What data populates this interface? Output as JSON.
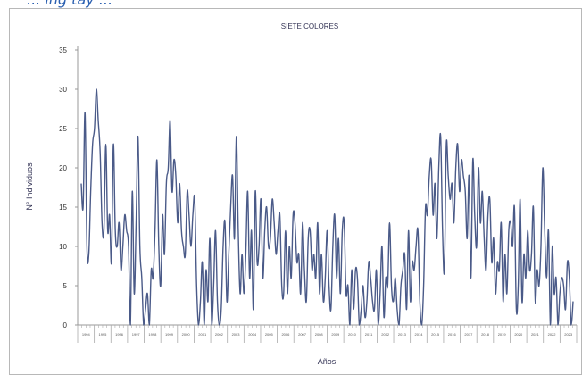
{
  "header_fragment": "... ing tay ...",
  "chart_data": {
    "type": "line",
    "title": "SIETE COLORES",
    "xlabel": "Años",
    "ylabel": "N° Individuos",
    "ylim": [
      0,
      35
    ],
    "yticks": [
      0,
      5,
      10,
      15,
      20,
      25,
      30,
      35
    ],
    "grid": false,
    "legend": "none",
    "colors": {
      "line": "#4a5a88",
      "axis": "#999999"
    },
    "year_groups": [
      "1994",
      "1995",
      "1996",
      "1997",
      "1998",
      "1999",
      "2000",
      "2001",
      "2002",
      "2003",
      "2004",
      "2005",
      "2006",
      "2007",
      "2008",
      "2009",
      "2010",
      "2011",
      "2012",
      "2013",
      "2014",
      "2015",
      "2016",
      "2017",
      "2018",
      "2019",
      "2020",
      "2021",
      "2022",
      "2023"
    ],
    "series": [
      {
        "values": [
          18,
          15,
          27,
          10,
          9,
          17,
          23,
          25,
          30,
          26,
          22,
          13,
          12,
          23,
          12,
          14,
          8,
          23,
          12,
          10,
          13,
          7,
          10,
          14,
          12,
          10,
          0,
          17,
          4,
          13,
          24,
          10,
          6,
          0,
          2,
          4,
          0,
          7,
          6,
          12,
          21,
          10,
          5,
          14,
          9,
          18,
          20,
          26,
          17,
          21,
          19,
          13,
          18,
          12,
          10,
          9,
          17,
          14,
          10,
          14,
          16,
          5,
          0,
          3,
          8,
          0,
          7,
          3,
          11,
          0,
          5,
          12,
          3,
          0,
          2,
          10,
          13,
          3,
          9,
          15,
          19,
          11,
          24,
          12,
          4,
          9,
          4,
          9,
          17,
          6,
          12,
          2,
          17,
          8,
          10,
          16,
          6,
          12,
          15,
          10,
          11,
          16,
          13,
          9,
          12,
          14,
          5,
          4,
          12,
          4,
          10,
          6,
          14,
          13,
          8,
          9,
          4,
          13,
          7,
          3,
          11,
          12,
          7,
          9,
          6,
          13,
          4,
          9,
          3,
          6,
          12,
          5,
          2,
          10,
          14,
          6,
          11,
          4,
          12,
          13,
          4,
          5,
          0,
          7,
          2,
          7,
          6,
          0,
          2,
          5,
          1,
          3,
          8,
          6,
          3,
          2,
          7,
          0,
          4,
          10,
          1,
          6,
          5,
          13,
          5,
          3,
          6,
          2,
          0,
          5,
          7,
          9,
          2,
          12,
          3,
          8,
          7,
          10,
          12,
          3,
          0,
          5,
          15,
          14,
          19,
          21,
          14,
          18,
          11,
          20,
          24,
          12,
          7,
          23,
          19,
          16,
          18,
          13,
          20,
          23,
          17,
          21,
          19,
          17,
          11,
          19,
          6,
          21,
          14,
          10,
          20,
          13,
          17,
          11,
          7,
          14,
          16,
          8,
          11,
          4,
          8,
          7,
          13,
          3,
          9,
          4,
          12,
          13,
          10,
          15,
          2,
          5,
          16,
          3,
          9,
          6,
          12,
          7,
          9,
          15,
          3,
          7,
          5,
          10,
          20,
          12,
          6,
          12,
          0,
          10,
          4,
          6,
          0,
          4,
          6,
          5,
          2,
          8,
          6,
          0,
          3
        ]
      }
    ]
  }
}
